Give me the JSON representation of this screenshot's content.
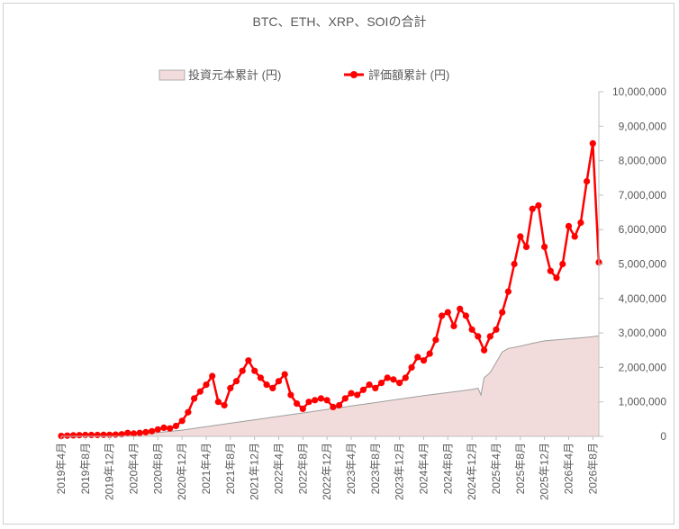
{
  "chart_data": {
    "type": "line",
    "title": "BTC、ETH、XRP、SOIの合計",
    "legend_position": "top",
    "grid": false,
    "y_axis_position": "right",
    "ylim": [
      0,
      10000000
    ],
    "y_ticks": [
      {
        "value": 0,
        "label": "0"
      },
      {
        "value": 1000000,
        "label": "1,000,000"
      },
      {
        "value": 2000000,
        "label": "2,000,000"
      },
      {
        "value": 3000000,
        "label": "3,000,000"
      },
      {
        "value": 4000000,
        "label": "4,000,000"
      },
      {
        "value": 5000000,
        "label": "5,000,000"
      },
      {
        "value": 6000000,
        "label": "6,000,000"
      },
      {
        "value": 7000000,
        "label": "7,000,000"
      },
      {
        "value": 8000000,
        "label": "8,000,000"
      },
      {
        "value": 9000000,
        "label": "9,000,000"
      },
      {
        "value": 10000000,
        "label": "10,000,000"
      }
    ],
    "x_ticks": [
      "2019年4月",
      "2019年8月",
      "2019年12月",
      "2020年4月",
      "2020年8月",
      "2020年12月",
      "2021年4月",
      "2021年8月",
      "2021年12月",
      "2022年4月",
      "2022年8月",
      "2022年12月",
      "2023年4月",
      "2023年8月",
      "2023年12月",
      "2024年4月",
      "2024年8月",
      "2024年12月",
      "2025年4月",
      "2025年8月",
      "2025年12月",
      "2026年4月",
      "2026年8月"
    ],
    "x_range": [
      "2019-04",
      "2026-09"
    ],
    "series": [
      {
        "name": "投資元本累計 (円)",
        "kind": "area",
        "color": "#f2dcdb",
        "stroke": "#9e9e9e",
        "points": [
          [
            "2019-04",
            0
          ],
          [
            "2019-12",
            30000
          ],
          [
            "2020-04",
            60000
          ],
          [
            "2020-08",
            110000
          ],
          [
            "2020-12",
            180000
          ],
          [
            "2021-04",
            280000
          ],
          [
            "2021-08",
            380000
          ],
          [
            "2021-12",
            480000
          ],
          [
            "2022-04",
            580000
          ],
          [
            "2022-08",
            680000
          ],
          [
            "2022-12",
            780000
          ],
          [
            "2023-04",
            880000
          ],
          [
            "2023-08",
            980000
          ],
          [
            "2023-12",
            1080000
          ],
          [
            "2024-04",
            1180000
          ],
          [
            "2024-08",
            1270000
          ],
          [
            "2024-12",
            1360000
          ],
          [
            "2025-01",
            1400000
          ],
          [
            "2025-01-15",
            1200000
          ],
          [
            "2025-02",
            1700000
          ],
          [
            "2025-03",
            1850000
          ],
          [
            "2025-04",
            2150000
          ],
          [
            "2025-05",
            2450000
          ],
          [
            "2025-06",
            2550000
          ],
          [
            "2025-08",
            2620000
          ],
          [
            "2025-10",
            2700000
          ],
          [
            "2025-12",
            2770000
          ],
          [
            "2026-02",
            2800000
          ],
          [
            "2026-04",
            2830000
          ],
          [
            "2026-06",
            2860000
          ],
          [
            "2026-08",
            2890000
          ],
          [
            "2026-09",
            2920000
          ]
        ]
      },
      {
        "name": "評価額累計 (円)",
        "kind": "line-markers",
        "color": "#ff0000",
        "points": [
          [
            "2019-04",
            10000
          ],
          [
            "2019-05",
            20000
          ],
          [
            "2019-06",
            30000
          ],
          [
            "2019-07",
            35000
          ],
          [
            "2019-08",
            40000
          ],
          [
            "2019-09",
            40000
          ],
          [
            "2019-10",
            40000
          ],
          [
            "2019-11",
            45000
          ],
          [
            "2019-12",
            45000
          ],
          [
            "2020-01",
            50000
          ],
          [
            "2020-02",
            60000
          ],
          [
            "2020-03",
            100000
          ],
          [
            "2020-04",
            80000
          ],
          [
            "2020-05",
            100000
          ],
          [
            "2020-06",
            120000
          ],
          [
            "2020-07",
            150000
          ],
          [
            "2020-08",
            200000
          ],
          [
            "2020-09",
            250000
          ],
          [
            "2020-10",
            230000
          ],
          [
            "2020-11",
            300000
          ],
          [
            "2020-12",
            450000
          ],
          [
            "2021-01",
            700000
          ],
          [
            "2021-02",
            1100000
          ],
          [
            "2021-03",
            1300000
          ],
          [
            "2021-04",
            1500000
          ],
          [
            "2021-05",
            1750000
          ],
          [
            "2021-06",
            1000000
          ],
          [
            "2021-07",
            900000
          ],
          [
            "2021-08",
            1400000
          ],
          [
            "2021-09",
            1600000
          ],
          [
            "2021-10",
            1900000
          ],
          [
            "2021-11",
            2200000
          ],
          [
            "2021-12",
            1900000
          ],
          [
            "2022-01",
            1700000
          ],
          [
            "2022-02",
            1500000
          ],
          [
            "2022-03",
            1400000
          ],
          [
            "2022-04",
            1600000
          ],
          [
            "2022-05",
            1800000
          ],
          [
            "2022-06",
            1200000
          ],
          [
            "2022-07",
            950000
          ],
          [
            "2022-08",
            800000
          ],
          [
            "2022-09",
            1000000
          ],
          [
            "2022-10",
            1050000
          ],
          [
            "2022-11",
            1100000
          ],
          [
            "2022-12",
            1050000
          ],
          [
            "2023-01",
            850000
          ],
          [
            "2023-02",
            900000
          ],
          [
            "2023-03",
            1100000
          ],
          [
            "2023-04",
            1250000
          ],
          [
            "2023-05",
            1200000
          ],
          [
            "2023-06",
            1350000
          ],
          [
            "2023-07",
            1500000
          ],
          [
            "2023-08",
            1400000
          ],
          [
            "2023-09",
            1550000
          ],
          [
            "2023-10",
            1700000
          ],
          [
            "2023-11",
            1650000
          ],
          [
            "2023-12",
            1550000
          ],
          [
            "2024-01",
            1700000
          ],
          [
            "2024-02",
            2000000
          ],
          [
            "2024-03",
            2300000
          ],
          [
            "2024-04",
            2200000
          ],
          [
            "2024-05",
            2400000
          ],
          [
            "2024-06",
            2800000
          ],
          [
            "2024-07",
            3500000
          ],
          [
            "2024-08",
            3600000
          ],
          [
            "2024-09",
            3200000
          ],
          [
            "2024-10",
            3700000
          ],
          [
            "2024-11",
            3500000
          ],
          [
            "2024-12",
            3100000
          ],
          [
            "2025-01",
            2900000
          ],
          [
            "2025-02",
            2500000
          ],
          [
            "2025-03",
            2900000
          ],
          [
            "2025-04",
            3100000
          ],
          [
            "2025-05",
            3600000
          ],
          [
            "2025-06",
            4200000
          ],
          [
            "2025-07",
            5000000
          ],
          [
            "2025-08",
            5800000
          ],
          [
            "2025-09",
            5500000
          ],
          [
            "2025-10",
            6600000
          ],
          [
            "2025-11",
            6700000
          ],
          [
            "2025-12",
            5500000
          ],
          [
            "2026-01",
            4800000
          ],
          [
            "2026-02",
            4600000
          ],
          [
            "2026-03",
            5000000
          ],
          [
            "2026-04",
            6100000
          ],
          [
            "2026-05",
            5800000
          ],
          [
            "2026-06",
            6200000
          ],
          [
            "2026-07",
            7400000
          ],
          [
            "2026-08",
            8500000
          ],
          [
            "2026-09",
            5050000
          ]
        ]
      }
    ]
  }
}
